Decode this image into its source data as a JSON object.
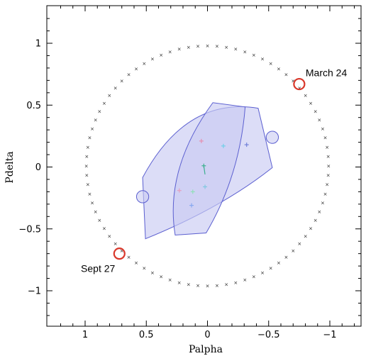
{
  "chart_data": {
    "type": "scatter",
    "title": "",
    "xlabel": "Palpha",
    "ylabel": "Pdelta",
    "xlim": [
      1.3,
      -1.3
    ],
    "ylim": [
      -1.3,
      1.3
    ],
    "x_inverted": true,
    "grid": false,
    "x_ticks": [
      {
        "value": 1,
        "label": "1"
      },
      {
        "value": 0.5,
        "label": "0.5"
      },
      {
        "value": 0,
        "label": "0"
      },
      {
        "value": -0.5,
        "label": "−0.5"
      },
      {
        "value": -1,
        "label": "−1"
      }
    ],
    "y_ticks": [
      {
        "value": 1,
        "label": "1"
      },
      {
        "value": 0.5,
        "label": "0.5"
      },
      {
        "value": 0,
        "label": "0"
      },
      {
        "value": -0.5,
        "label": "−0.5"
      },
      {
        "value": -1,
        "label": "−1"
      }
    ],
    "parallax_ellipse": {
      "center": [
        0,
        0.01
      ],
      "rx": 0.99,
      "ry": 0.97,
      "marker": "×",
      "marker_color": "#222222"
    },
    "highlighted_points": [
      {
        "label": "March 24",
        "x": -0.75,
        "y": 0.67,
        "color": "#d9382b"
      },
      {
        "label": "Sept 27",
        "x": 0.72,
        "y": -0.7,
        "color": "#d9382b"
      }
    ],
    "bands": [
      {
        "x_start": 0.53,
        "x_end": -0.53,
        "y_center": 0.0,
        "half_height": 0.3,
        "sag": 0.25,
        "fill": "#c9cbf2",
        "stroke": "#5b5fd0"
      },
      {
        "x_center": 0.0,
        "y_start": -0.55,
        "y_end": 0.52,
        "half_width": 0.22,
        "sag": 0.22,
        "fill": "#c9cbf2",
        "stroke": "#5b5fd0"
      }
    ],
    "end_circles": [
      {
        "x": 0.53,
        "y": -0.24,
        "r": 0.05
      },
      {
        "x": -0.53,
        "y": 0.24,
        "r": 0.05
      }
    ],
    "measurements": [
      {
        "x": 0.05,
        "y": 0.21,
        "color": "#e58fb0"
      },
      {
        "x": -0.13,
        "y": 0.17,
        "color": "#6fd0e8"
      },
      {
        "x": -0.32,
        "y": 0.18,
        "color": "#7080d8"
      },
      {
        "x": 0.03,
        "y": 0.01,
        "color": "#3cb08f"
      },
      {
        "x": 0.23,
        "y": -0.19,
        "color": "#e5a0c0"
      },
      {
        "x": 0.12,
        "y": -0.2,
        "color": "#90e0b8"
      },
      {
        "x": 0.02,
        "y": -0.16,
        "color": "#80c8e0"
      },
      {
        "x": 0.13,
        "y": -0.31,
        "color": "#88a8f0"
      }
    ]
  }
}
